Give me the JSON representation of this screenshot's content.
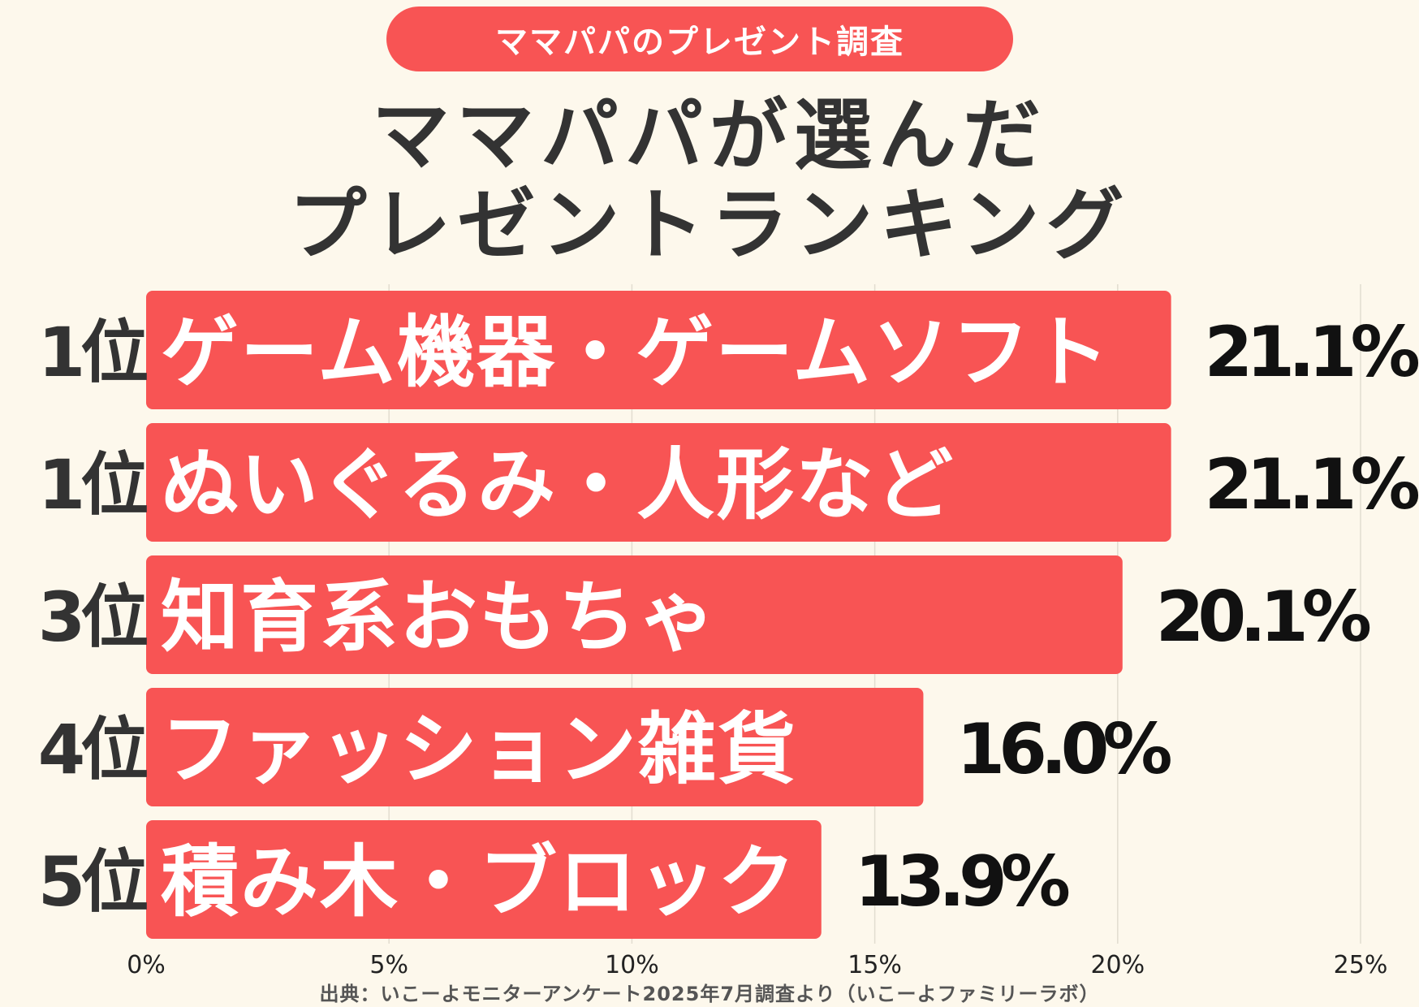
{
  "header": {
    "badge": "ママパパのプレゼント調査",
    "title_line1": "ママパパが選んだ",
    "title_line2": "プレゼントランキング"
  },
  "source": "出典：いこーよモニターアンケート2025年7月調査より（いこーよファミリーラボ）",
  "colors": {
    "bar": "#f85454",
    "background": "#fdf8ec",
    "text": "#333333",
    "value": "#111111",
    "grid": "#e2ddd0"
  },
  "chart_data": {
    "type": "bar",
    "orientation": "horizontal",
    "ranks": [
      "1位",
      "1位",
      "3位",
      "4位",
      "5位"
    ],
    "categories": [
      "ゲーム機器・ゲームソフト",
      "ぬいぐるみ・人形など",
      "知育系おもちゃ",
      "ファッション雑貨",
      "積み木・ブロック"
    ],
    "values": [
      21.1,
      21.1,
      20.1,
      16.0,
      13.9
    ],
    "value_labels": [
      "21.1%",
      "21.1%",
      "20.1%",
      "16.0%",
      "13.9%"
    ],
    "xlim": [
      0,
      25
    ],
    "xticks": [
      "0%",
      "5%",
      "10%",
      "15%",
      "20%",
      "25%"
    ],
    "grid": true
  }
}
